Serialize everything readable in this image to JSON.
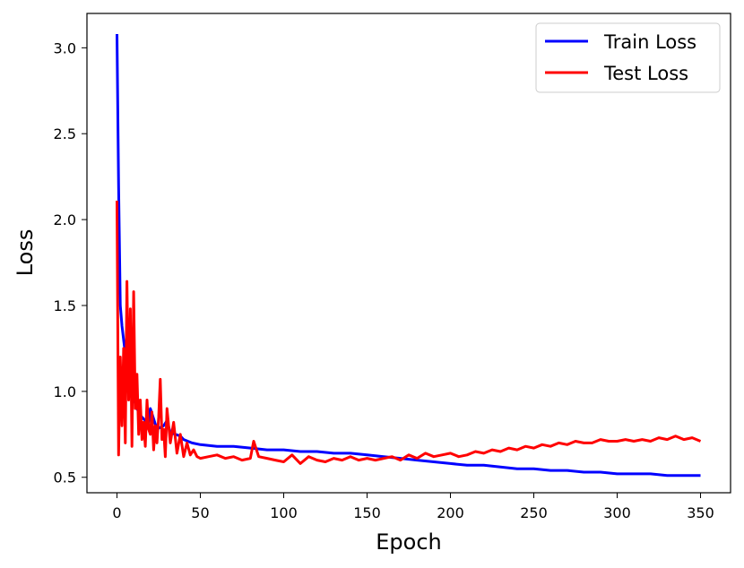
{
  "chart_data": {
    "type": "line",
    "title": "",
    "xlabel": "Epoch",
    "ylabel": "Loss",
    "xlim": [
      -18,
      368
    ],
    "ylim": [
      0.41,
      3.2
    ],
    "xticks": [
      0,
      50,
      100,
      150,
      200,
      250,
      300,
      350
    ],
    "xtick_labels": [
      "0",
      "50",
      "100",
      "150",
      "200",
      "250",
      "300",
      "350"
    ],
    "yticks": [
      0.5,
      1.0,
      1.5,
      2.0,
      2.5,
      3.0
    ],
    "ytick_labels": [
      "0.5",
      "1.0",
      "1.5",
      "2.0",
      "2.5",
      "3.0"
    ],
    "grid": false,
    "legend_position": "top-right",
    "series": [
      {
        "name": "Train Loss",
        "color": "#0000ff",
        "x": [
          0,
          1,
          2,
          3,
          4,
          5,
          6,
          7,
          8,
          9,
          10,
          11,
          12,
          13,
          14,
          15,
          16,
          17,
          18,
          19,
          20,
          22,
          24,
          26,
          28,
          30,
          32,
          35,
          38,
          40,
          45,
          50,
          60,
          70,
          80,
          90,
          100,
          110,
          120,
          130,
          140,
          150,
          160,
          170,
          180,
          190,
          200,
          210,
          220,
          230,
          240,
          250,
          260,
          270,
          280,
          290,
          300,
          310,
          320,
          330,
          340,
          350
        ],
        "y": [
          3.08,
          2.2,
          1.5,
          1.38,
          1.3,
          1.22,
          1.15,
          1.08,
          1.02,
          0.99,
          0.96,
          0.93,
          0.9,
          0.88,
          0.86,
          0.85,
          0.84,
          0.83,
          0.82,
          0.82,
          0.9,
          0.84,
          0.78,
          0.79,
          0.8,
          0.83,
          0.76,
          0.75,
          0.74,
          0.72,
          0.7,
          0.69,
          0.68,
          0.68,
          0.67,
          0.66,
          0.66,
          0.65,
          0.65,
          0.64,
          0.64,
          0.63,
          0.62,
          0.61,
          0.6,
          0.59,
          0.58,
          0.57,
          0.57,
          0.56,
          0.55,
          0.55,
          0.54,
          0.54,
          0.53,
          0.53,
          0.52,
          0.52,
          0.52,
          0.51,
          0.51,
          0.51
        ]
      },
      {
        "name": "Test Loss",
        "color": "#ff0000",
        "x": [
          0,
          1,
          2,
          3,
          4,
          5,
          6,
          7,
          8,
          9,
          10,
          11,
          12,
          13,
          14,
          15,
          16,
          17,
          18,
          19,
          20,
          21,
          22,
          23,
          24,
          25,
          26,
          27,
          28,
          29,
          30,
          32,
          34,
          36,
          38,
          40,
          42,
          44,
          46,
          48,
          50,
          55,
          60,
          65,
          70,
          75,
          80,
          82,
          85,
          90,
          95,
          100,
          105,
          110,
          115,
          120,
          125,
          130,
          135,
          140,
          145,
          150,
          155,
          160,
          165,
          170,
          175,
          180,
          185,
          190,
          195,
          200,
          205,
          210,
          215,
          220,
          225,
          230,
          235,
          240,
          245,
          250,
          255,
          260,
          265,
          270,
          275,
          280,
          285,
          290,
          295,
          300,
          305,
          310,
          315,
          320,
          325,
          330,
          335,
          340,
          345,
          350
        ],
        "y": [
          2.11,
          0.63,
          1.2,
          0.8,
          1.25,
          0.7,
          1.64,
          0.95,
          1.48,
          0.68,
          1.58,
          0.9,
          1.1,
          0.75,
          0.95,
          0.72,
          0.82,
          0.68,
          0.95,
          0.78,
          0.75,
          0.88,
          0.66,
          0.8,
          0.7,
          0.85,
          1.07,
          0.72,
          0.78,
          0.62,
          0.9,
          0.7,
          0.82,
          0.64,
          0.75,
          0.62,
          0.7,
          0.63,
          0.66,
          0.62,
          0.61,
          0.62,
          0.63,
          0.61,
          0.62,
          0.6,
          0.61,
          0.71,
          0.62,
          0.61,
          0.6,
          0.59,
          0.63,
          0.58,
          0.62,
          0.6,
          0.59,
          0.61,
          0.6,
          0.62,
          0.6,
          0.61,
          0.6,
          0.61,
          0.62,
          0.6,
          0.63,
          0.61,
          0.64,
          0.62,
          0.63,
          0.64,
          0.62,
          0.63,
          0.65,
          0.64,
          0.66,
          0.65,
          0.67,
          0.66,
          0.68,
          0.67,
          0.69,
          0.68,
          0.7,
          0.69,
          0.71,
          0.7,
          0.7,
          0.72,
          0.71,
          0.71,
          0.72,
          0.71,
          0.72,
          0.71,
          0.73,
          0.72,
          0.74,
          0.72,
          0.73,
          0.71
        ]
      }
    ]
  }
}
